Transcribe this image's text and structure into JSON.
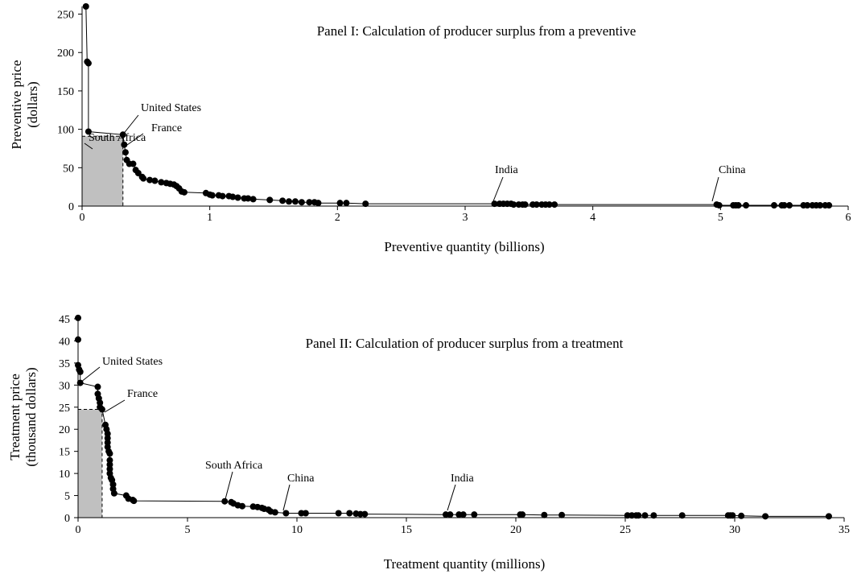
{
  "chart_data": [
    {
      "type": "line",
      "title": "Panel I: Calculation of producer surplus from a preventive",
      "xlabel": "Preventive quantity (billions)",
      "ylabel": [
        "Preventive price",
        "(dollars)"
      ],
      "xlim": [
        0,
        6
      ],
      "ylim": [
        0,
        260
      ],
      "x_ticks": [
        0,
        1,
        2,
        3,
        4,
        5,
        6
      ],
      "y_ticks": [
        0,
        50,
        100,
        150,
        200,
        250
      ],
      "grid": false,
      "surplus_rect": {
        "x": 0.32,
        "y": 91
      },
      "annotations": [
        {
          "text": "South Africa",
          "x": 0.045,
          "y": 188
        },
        {
          "text": "United States",
          "x": 0.32,
          "y": 93
        },
        {
          "text": "France",
          "x": 0.34,
          "y": 70
        },
        {
          "text": "India",
          "x": 3.25,
          "y": 3
        },
        {
          "text": "China",
          "x": 4.97,
          "y": 2
        }
      ],
      "points": [
        [
          0.03,
          260
        ],
        [
          0.04,
          188
        ],
        [
          0.05,
          186
        ],
        [
          0.05,
          97
        ],
        [
          0.32,
          93
        ],
        [
          0.33,
          80
        ],
        [
          0.34,
          70
        ],
        [
          0.35,
          60
        ],
        [
          0.37,
          55
        ],
        [
          0.4,
          55
        ],
        [
          0.42,
          47
        ],
        [
          0.44,
          43
        ],
        [
          0.47,
          38
        ],
        [
          0.48,
          36
        ],
        [
          0.53,
          34
        ],
        [
          0.57,
          33
        ],
        [
          0.62,
          31
        ],
        [
          0.66,
          30
        ],
        [
          0.69,
          29
        ],
        [
          0.72,
          28
        ],
        [
          0.74,
          26
        ],
        [
          0.76,
          23
        ],
        [
          0.78,
          19
        ],
        [
          0.8,
          18
        ],
        [
          0.97,
          17
        ],
        [
          1.0,
          15
        ],
        [
          1.02,
          14
        ],
        [
          1.07,
          14
        ],
        [
          1.1,
          13
        ],
        [
          1.15,
          13
        ],
        [
          1.18,
          12
        ],
        [
          1.22,
          11
        ],
        [
          1.27,
          10
        ],
        [
          1.3,
          10
        ],
        [
          1.34,
          9
        ],
        [
          1.47,
          8
        ],
        [
          1.57,
          7
        ],
        [
          1.62,
          6
        ],
        [
          1.67,
          6
        ],
        [
          1.72,
          5
        ],
        [
          1.78,
          5
        ],
        [
          1.82,
          5
        ],
        [
          1.85,
          4
        ],
        [
          2.02,
          4
        ],
        [
          2.07,
          4
        ],
        [
          2.22,
          3
        ],
        [
          3.23,
          3
        ],
        [
          3.27,
          3
        ],
        [
          3.3,
          3
        ],
        [
          3.33,
          3
        ],
        [
          3.36,
          3
        ],
        [
          3.38,
          2
        ],
        [
          3.42,
          2
        ],
        [
          3.45,
          2
        ],
        [
          3.47,
          2
        ],
        [
          3.53,
          2
        ],
        [
          3.56,
          2
        ],
        [
          3.6,
          2
        ],
        [
          3.63,
          2
        ],
        [
          3.66,
          2
        ],
        [
          3.7,
          2
        ],
        [
          4.97,
          2
        ],
        [
          4.99,
          1
        ],
        [
          5.1,
          1
        ],
        [
          5.12,
          1
        ],
        [
          5.14,
          1
        ],
        [
          5.2,
          1
        ],
        [
          5.42,
          1
        ],
        [
          5.48,
          1
        ],
        [
          5.5,
          1
        ],
        [
          5.54,
          1
        ],
        [
          5.65,
          1
        ],
        [
          5.68,
          1
        ],
        [
          5.72,
          1
        ],
        [
          5.75,
          1
        ],
        [
          5.78,
          1
        ],
        [
          5.82,
          1
        ],
        [
          5.85,
          1
        ]
      ]
    },
    {
      "type": "line",
      "title": "Panel II: Calculation of producer surplus from a treatment",
      "xlabel": "Treatment quantity (millions)",
      "ylabel": [
        "Treatment price",
        "(thousand dollars)"
      ],
      "xlim": [
        0,
        35
      ],
      "ylim": [
        0,
        45
      ],
      "x_ticks": [
        0,
        5,
        10,
        15,
        20,
        25,
        30,
        35
      ],
      "y_ticks": [
        0,
        5,
        10,
        15,
        20,
        25,
        30,
        35,
        40,
        45
      ],
      "grid": false,
      "surplus_rect": {
        "x": 1.1,
        "y": 24.5
      },
      "annotations": [
        {
          "text": "United States",
          "x": 0.05,
          "y": 30.5
        },
        {
          "text": "France",
          "x": 1.05,
          "y": 25
        },
        {
          "text": "South Africa",
          "x": 6.7,
          "y": 3.7
        },
        {
          "text": "China",
          "x": 9.4,
          "y": 1.0
        },
        {
          "text": "India",
          "x": 16.8,
          "y": 0.8
        }
      ],
      "points": [
        [
          0.0,
          45.2
        ],
        [
          0.0,
          40.3
        ],
        [
          0.0,
          34.5
        ],
        [
          0.05,
          33.5
        ],
        [
          0.1,
          33.0
        ],
        [
          0.1,
          30.5
        ],
        [
          0.9,
          29.6
        ],
        [
          0.9,
          28.0
        ],
        [
          0.95,
          27.0
        ],
        [
          1.0,
          26.0
        ],
        [
          1.0,
          25.0
        ],
        [
          1.1,
          24.5
        ],
        [
          1.25,
          21.0
        ],
        [
          1.3,
          20.0
        ],
        [
          1.35,
          19.0
        ],
        [
          1.35,
          18.0
        ],
        [
          1.35,
          17.0
        ],
        [
          1.35,
          16.0
        ],
        [
          1.4,
          15.0
        ],
        [
          1.45,
          14.5
        ],
        [
          1.45,
          13.0
        ],
        [
          1.45,
          12.0
        ],
        [
          1.45,
          11.0
        ],
        [
          1.45,
          10.0
        ],
        [
          1.5,
          9.0
        ],
        [
          1.55,
          8.5
        ],
        [
          1.6,
          7.5
        ],
        [
          1.6,
          6.5
        ],
        [
          1.65,
          5.5
        ],
        [
          2.2,
          5.0
        ],
        [
          2.3,
          4.3
        ],
        [
          2.5,
          4.0
        ],
        [
          2.55,
          3.8
        ],
        [
          6.7,
          3.7
        ],
        [
          7.0,
          3.5
        ],
        [
          7.1,
          3.2
        ],
        [
          7.3,
          2.8
        ],
        [
          7.5,
          2.6
        ],
        [
          8.0,
          2.5
        ],
        [
          8.2,
          2.4
        ],
        [
          8.4,
          2.2
        ],
        [
          8.5,
          2.0
        ],
        [
          8.7,
          1.8
        ],
        [
          8.8,
          1.4
        ],
        [
          9.0,
          1.2
        ],
        [
          9.5,
          1.0
        ],
        [
          10.2,
          1.0
        ],
        [
          10.4,
          1.0
        ],
        [
          11.9,
          1.0
        ],
        [
          12.4,
          1.0
        ],
        [
          12.7,
          0.9
        ],
        [
          12.9,
          0.8
        ],
        [
          13.1,
          0.8
        ],
        [
          16.8,
          0.7
        ],
        [
          17.0,
          0.7
        ],
        [
          17.4,
          0.7
        ],
        [
          17.6,
          0.7
        ],
        [
          18.1,
          0.7
        ],
        [
          20.2,
          0.7
        ],
        [
          20.3,
          0.7
        ],
        [
          21.3,
          0.6
        ],
        [
          22.1,
          0.6
        ],
        [
          25.1,
          0.5
        ],
        [
          25.3,
          0.5
        ],
        [
          25.5,
          0.5
        ],
        [
          25.6,
          0.5
        ],
        [
          25.9,
          0.5
        ],
        [
          26.3,
          0.5
        ],
        [
          27.6,
          0.5
        ],
        [
          29.7,
          0.5
        ],
        [
          29.8,
          0.5
        ],
        [
          29.9,
          0.5
        ],
        [
          30.3,
          0.4
        ],
        [
          31.4,
          0.3
        ],
        [
          34.3,
          0.3
        ]
      ]
    }
  ]
}
